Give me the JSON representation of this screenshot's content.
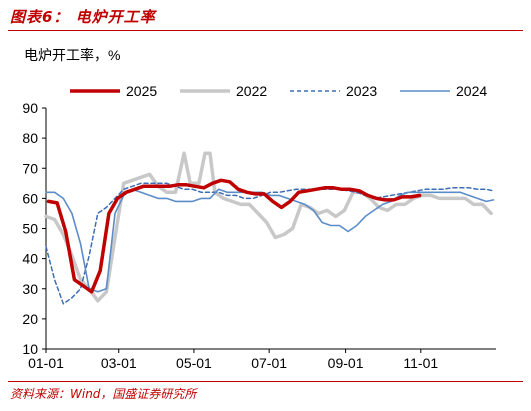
{
  "figure": {
    "title": "图表6：  电炉开工率",
    "source": "资料来源：Wind，国盛证券研究所"
  },
  "chart_data": {
    "type": "line",
    "ylabel": "电炉开工率，%",
    "ylim": [
      10,
      90
    ],
    "yticks": [
      10,
      20,
      30,
      40,
      50,
      60,
      70,
      80,
      90
    ],
    "xlim": [
      1,
      366
    ],
    "xticks": [
      {
        "label": "01-01",
        "day": 1
      },
      {
        "label": "03-01",
        "day": 60
      },
      {
        "label": "05-01",
        "day": 121
      },
      {
        "label": "07-01",
        "day": 182
      },
      {
        "label": "09-01",
        "day": 244
      },
      {
        "label": "11-01",
        "day": 305
      }
    ],
    "legend_position": "top",
    "series": [
      {
        "name": "2025",
        "color": "#c00000",
        "style": "solid-thick",
        "points": [
          [
            3,
            59
          ],
          [
            10,
            58.5
          ],
          [
            17,
            49
          ],
          [
            24,
            33
          ],
          [
            31,
            31
          ],
          [
            38,
            29
          ],
          [
            45,
            36
          ],
          [
            52,
            55
          ],
          [
            59,
            60
          ],
          [
            66,
            62
          ],
          [
            73,
            63
          ],
          [
            80,
            64
          ],
          [
            87,
            64
          ],
          [
            94,
            64
          ],
          [
            101,
            64
          ],
          [
            108,
            64.5
          ],
          [
            115,
            64.5
          ],
          [
            122,
            64
          ],
          [
            129,
            63.5
          ],
          [
            136,
            65
          ],
          [
            143,
            66
          ],
          [
            150,
            65.5
          ],
          [
            157,
            63
          ],
          [
            164,
            62
          ],
          [
            171,
            61.5
          ],
          [
            178,
            61.5
          ],
          [
            185,
            59
          ],
          [
            192,
            57
          ],
          [
            199,
            59
          ],
          [
            206,
            62
          ],
          [
            213,
            62.5
          ],
          [
            220,
            63
          ],
          [
            227,
            63.5
          ],
          [
            234,
            63.5
          ],
          [
            241,
            63
          ],
          [
            248,
            63
          ],
          [
            255,
            62.5
          ],
          [
            262,
            61
          ],
          [
            269,
            60
          ],
          [
            276,
            59.5
          ],
          [
            283,
            59.5
          ],
          [
            290,
            60.5
          ],
          [
            297,
            60.5
          ],
          [
            304,
            61
          ]
        ]
      },
      {
        "name": "2022",
        "color": "#c8c8c8",
        "style": "solid-thick",
        "points": [
          [
            1,
            54
          ],
          [
            8,
            53
          ],
          [
            15,
            48
          ],
          [
            22,
            41
          ],
          [
            29,
            33
          ],
          [
            36,
            30
          ],
          [
            43,
            26
          ],
          [
            50,
            29
          ],
          [
            57,
            47
          ],
          [
            64,
            65
          ],
          [
            71,
            66
          ],
          [
            78,
            67
          ],
          [
            85,
            68
          ],
          [
            92,
            64
          ],
          [
            99,
            62
          ],
          [
            106,
            62
          ],
          [
            113,
            75
          ],
          [
            118,
            65
          ],
          [
            125,
            65
          ],
          [
            130,
            75
          ],
          [
            134,
            75
          ],
          [
            138,
            62
          ],
          [
            145,
            60
          ],
          [
            152,
            59
          ],
          [
            159,
            58
          ],
          [
            166,
            58
          ],
          [
            173,
            55
          ],
          [
            180,
            52
          ],
          [
            187,
            47
          ],
          [
            194,
            48
          ],
          [
            201,
            50
          ],
          [
            208,
            58
          ],
          [
            215,
            57
          ],
          [
            222,
            55
          ],
          [
            229,
            56
          ],
          [
            236,
            54
          ],
          [
            243,
            56
          ],
          [
            250,
            62
          ],
          [
            257,
            62
          ],
          [
            264,
            60
          ],
          [
            271,
            57
          ],
          [
            278,
            56
          ],
          [
            285,
            58
          ],
          [
            292,
            58
          ],
          [
            299,
            60
          ],
          [
            306,
            61
          ],
          [
            313,
            61
          ],
          [
            320,
            60
          ],
          [
            327,
            60
          ],
          [
            334,
            60
          ],
          [
            341,
            60
          ],
          [
            348,
            58
          ],
          [
            355,
            58
          ],
          [
            362,
            55
          ]
        ]
      },
      {
        "name": "2023",
        "color": "#3d6db5",
        "style": "dashed",
        "points": [
          [
            1,
            44
          ],
          [
            8,
            33
          ],
          [
            15,
            25
          ],
          [
            22,
            27
          ],
          [
            29,
            30
          ],
          [
            36,
            41
          ],
          [
            43,
            55
          ],
          [
            50,
            57
          ],
          [
            57,
            60
          ],
          [
            64,
            63
          ],
          [
            71,
            64
          ],
          [
            78,
            65
          ],
          [
            85,
            65
          ],
          [
            92,
            65
          ],
          [
            99,
            65
          ],
          [
            106,
            64
          ],
          [
            113,
            63
          ],
          [
            120,
            63
          ],
          [
            127,
            62
          ],
          [
            134,
            62
          ],
          [
            141,
            62
          ],
          [
            148,
            61
          ],
          [
            155,
            61
          ],
          [
            162,
            60
          ],
          [
            169,
            60
          ],
          [
            176,
            61
          ],
          [
            183,
            62
          ],
          [
            190,
            62
          ],
          [
            197,
            62.5
          ],
          [
            204,
            63
          ],
          [
            211,
            63
          ],
          [
            218,
            63
          ],
          [
            225,
            63
          ],
          [
            232,
            63
          ],
          [
            239,
            63
          ],
          [
            246,
            62.5
          ],
          [
            253,
            62
          ],
          [
            260,
            61
          ],
          [
            267,
            60
          ],
          [
            274,
            60.5
          ],
          [
            281,
            61
          ],
          [
            288,
            61.5
          ],
          [
            295,
            62
          ],
          [
            302,
            62.5
          ],
          [
            309,
            63
          ],
          [
            316,
            63
          ],
          [
            323,
            63
          ],
          [
            330,
            63.5
          ],
          [
            337,
            63.5
          ],
          [
            344,
            63.5
          ],
          [
            351,
            63
          ],
          [
            358,
            63
          ],
          [
            364,
            62.5
          ]
        ]
      },
      {
        "name": "2024",
        "color": "#5b8dc9",
        "style": "solid",
        "points": [
          [
            1,
            62
          ],
          [
            8,
            62
          ],
          [
            15,
            60
          ],
          [
            22,
            55
          ],
          [
            29,
            45
          ],
          [
            36,
            30
          ],
          [
            43,
            29
          ],
          [
            50,
            30
          ],
          [
            57,
            55
          ],
          [
            64,
            61
          ],
          [
            71,
            63
          ],
          [
            78,
            62
          ],
          [
            85,
            61
          ],
          [
            92,
            60
          ],
          [
            99,
            60
          ],
          [
            106,
            59
          ],
          [
            113,
            59
          ],
          [
            120,
            59
          ],
          [
            127,
            60
          ],
          [
            134,
            60
          ],
          [
            141,
            63
          ],
          [
            148,
            62
          ],
          [
            155,
            62
          ],
          [
            162,
            62
          ],
          [
            169,
            62
          ],
          [
            176,
            62
          ],
          [
            183,
            61
          ],
          [
            190,
            61
          ],
          [
            197,
            60
          ],
          [
            204,
            59
          ],
          [
            211,
            58
          ],
          [
            218,
            56
          ],
          [
            225,
            52
          ],
          [
            232,
            51
          ],
          [
            239,
            51
          ],
          [
            246,
            49
          ],
          [
            253,
            51
          ],
          [
            260,
            54
          ],
          [
            267,
            56
          ],
          [
            274,
            58
          ],
          [
            281,
            59
          ],
          [
            288,
            61
          ],
          [
            295,
            62
          ],
          [
            302,
            62
          ],
          [
            309,
            62
          ],
          [
            316,
            62
          ],
          [
            323,
            62
          ],
          [
            330,
            62
          ],
          [
            337,
            62
          ],
          [
            344,
            61
          ],
          [
            351,
            60
          ],
          [
            358,
            59
          ],
          [
            364,
            59.5
          ]
        ]
      }
    ]
  }
}
